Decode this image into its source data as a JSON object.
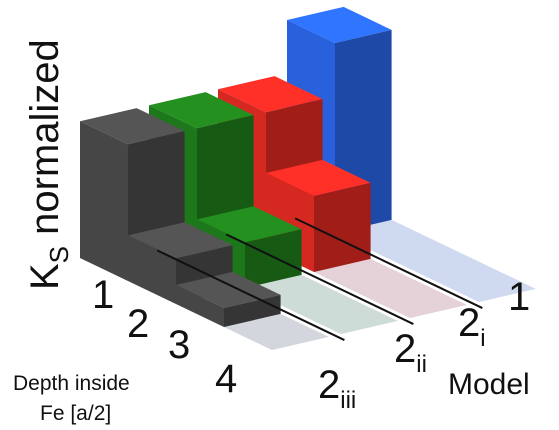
{
  "chart_data": {
    "type": "bar",
    "title": "",
    "zlabel": {
      "main": "K",
      "sub": "S",
      "rest": " normalized"
    },
    "depth_axis": {
      "label_line1": "Depth inside",
      "label_line2": "Fe [a/2]",
      "ticks": [
        "1",
        "2",
        "3",
        "4"
      ]
    },
    "model_axis": {
      "label": "Model",
      "ticks": [
        {
          "main": "1",
          "sub": ""
        },
        {
          "main": "2",
          "sub": "i"
        },
        {
          "main": "2",
          "sub": "ii"
        },
        {
          "main": "2",
          "sub": "iii"
        }
      ]
    },
    "zlim": [
      0,
      1
    ],
    "series": [
      {
        "model": "1",
        "color": "#2a66e6",
        "values": [
          1.0,
          0.0,
          0.0,
          0.0
        ]
      },
      {
        "model": "2i",
        "color": "#e02a22",
        "values": [
          0.72,
          0.4,
          0.0,
          0.0
        ]
      },
      {
        "model": "2ii",
        "color": "#1f7d1c",
        "values": [
          0.72,
          0.24,
          0.0,
          0.0
        ]
      },
      {
        "model": "2iii",
        "color": "#4a4a4a",
        "values": [
          0.72,
          0.24,
          0.1,
          0.0
        ]
      }
    ]
  }
}
